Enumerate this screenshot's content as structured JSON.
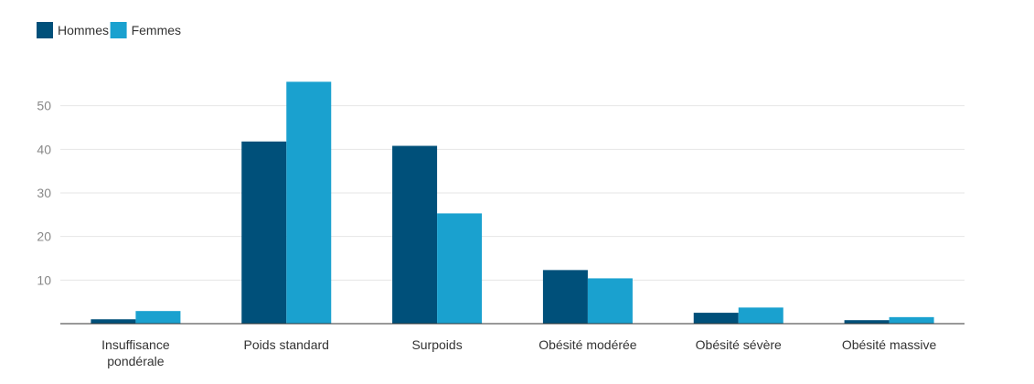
{
  "chart_data": {
    "type": "bar",
    "categories": [
      [
        "Insuffisance",
        "pondérale"
      ],
      [
        "Poids standard"
      ],
      [
        "Surpoids"
      ],
      [
        "Obésité modérée"
      ],
      [
        "Obésité sévère"
      ],
      [
        "Obésité massive"
      ]
    ],
    "series": [
      {
        "name": "Hommes",
        "color": "#00507a",
        "values": [
          1.0,
          41.8,
          40.8,
          12.3,
          2.5,
          0.8
        ]
      },
      {
        "name": "Femmes",
        "color": "#1aa1cf",
        "values": [
          2.9,
          55.5,
          25.3,
          10.4,
          3.7,
          1.5
        ]
      }
    ],
    "yticks": [
      10,
      20,
      30,
      40,
      50
    ],
    "ylim": [
      0,
      60
    ],
    "grid": true,
    "legend_position": "top-left",
    "title": "",
    "xlabel": "",
    "ylabel": ""
  }
}
